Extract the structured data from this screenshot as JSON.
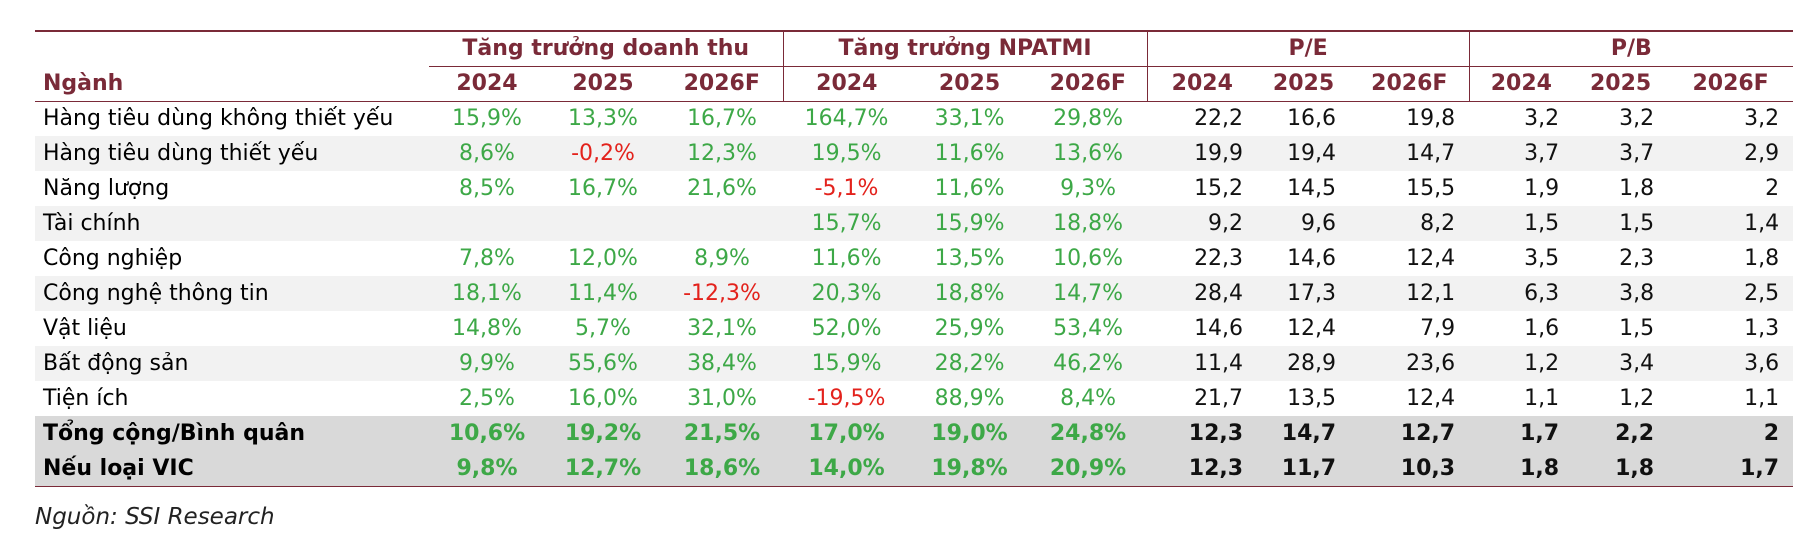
{
  "table": {
    "groups": [
      "Tăng trưởng doanh thu",
      "Tăng trưởng NPATMI",
      "P/E",
      "P/B"
    ],
    "row_header": "Ngành",
    "columns": [
      "2024",
      "2025",
      "2026F",
      "2024",
      "2025",
      "2026F",
      "2024",
      "2025",
      "2026F",
      "2024",
      "2025",
      "2026F"
    ],
    "rows": [
      [
        "Hàng tiêu dùng không thiết yếu",
        "15,9%",
        "13,3%",
        "16,7%",
        "164,7%",
        "33,1%",
        "29,8%",
        "22,2",
        "16,6",
        "19,8",
        "3,2",
        "3,2",
        "3,2"
      ],
      [
        "Hàng tiêu dùng thiết yếu",
        "8,6%",
        "-0,2%",
        "12,3%",
        "19,5%",
        "11,6%",
        "13,6%",
        "19,9",
        "19,4",
        "14,7",
        "3,7",
        "3,7",
        "2,9"
      ],
      [
        "Năng lượng",
        "8,5%",
        "16,7%",
        "21,6%",
        "-5,1%",
        "11,6%",
        "9,3%",
        "15,2",
        "14,5",
        "15,5",
        "1,9",
        "1,8",
        "2"
      ],
      [
        "Tài chính",
        null,
        null,
        null,
        "15,7%",
        "15,9%",
        "18,8%",
        "9,2",
        "9,6",
        "8,2",
        "1,5",
        "1,5",
        "1,4"
      ],
      [
        "Công nghiệp",
        "7,8%",
        "12,0%",
        "8,9%",
        "11,6%",
        "13,5%",
        "10,6%",
        "22,3",
        "14,6",
        "12,4",
        "3,5",
        "2,3",
        "1,8"
      ],
      [
        "Công nghệ thông tin",
        "18,1%",
        "11,4%",
        "-12,3%",
        "20,3%",
        "18,8%",
        "14,7%",
        "28,4",
        "17,3",
        "12,1",
        "6,3",
        "3,8",
        "2,5"
      ],
      [
        "Vật liệu",
        "14,8%",
        "5,7%",
        "32,1%",
        "52,0%",
        "25,9%",
        "53,4%",
        "14,6",
        "12,4",
        "7,9",
        "1,6",
        "1,5",
        "1,3"
      ],
      [
        "Bất động sản",
        "9,9%",
        "55,6%",
        "38,4%",
        "15,9%",
        "28,2%",
        "46,2%",
        "11,4",
        "28,9",
        "23,6",
        "1,2",
        "3,4",
        "3,6"
      ],
      [
        "Tiện ích",
        "2,5%",
        "16,0%",
        "31,0%",
        "-19,5%",
        "88,9%",
        "8,4%",
        "21,7",
        "13,5",
        "12,4",
        "1,1",
        "1,2",
        "1,1"
      ],
      [
        "Tổng cộng/Bình quân",
        "10,6%",
        "19,2%",
        "21,5%",
        "17,0%",
        "19,0%",
        "24,8%",
        "12,3",
        "14,7",
        "12,7",
        "1,7",
        "2,2",
        "2"
      ],
      [
        "Nếu loại VIC",
        "9,8%",
        "12,7%",
        "18,6%",
        "14,0%",
        "19,8%",
        "20,9%",
        "12,3",
        "11,7",
        "10,3",
        "1,8",
        "1,8",
        "1,7"
      ]
    ],
    "bold_rows": [
      9,
      10
    ],
    "colors": {
      "header": "#7a2a38",
      "positive": "#3da847",
      "negative": "#e3221c",
      "ratio": "#111111"
    }
  },
  "footer": {
    "source": "Nguồn: SSI Research"
  }
}
